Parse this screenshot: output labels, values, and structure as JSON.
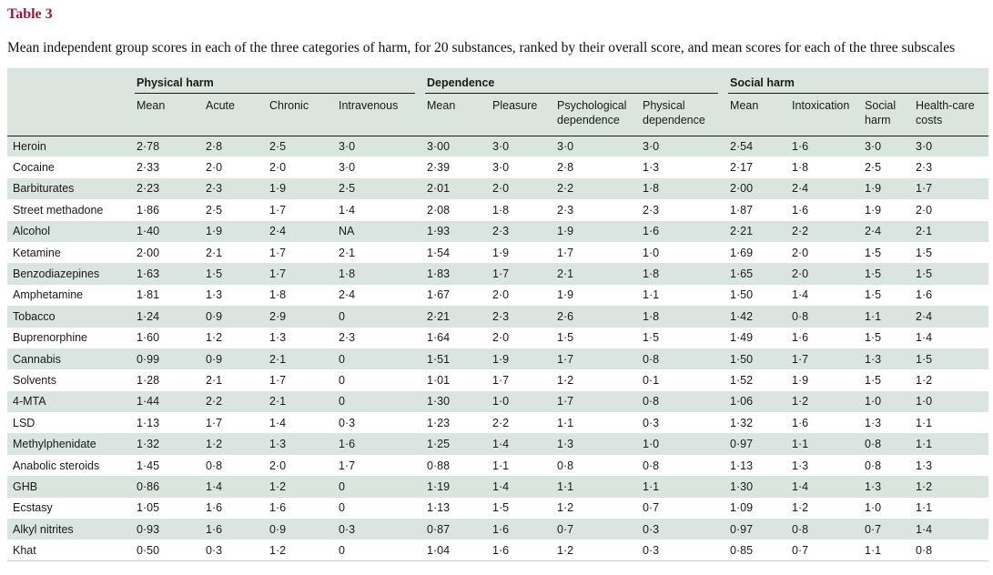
{
  "title": "Table 3",
  "caption": "Mean independent group scores in each of the three categories of harm, for 20 substances, ranked by their overall score, and mean scores for each of the three subscales",
  "colors": {
    "title_accent": "#a4123f",
    "row_stripe_green": "#d9e5de",
    "header_rule_dark": "#1c1c1c",
    "table_bottom_rule": "#c9cfca",
    "text": "#1a1a1a"
  },
  "table": {
    "substance_column_header": "",
    "groups": [
      {
        "label": "Physical harm",
        "columns": [
          "Mean",
          "Acute",
          "Chronic",
          "Intravenous"
        ]
      },
      {
        "label": "Dependence",
        "columns": [
          "Mean",
          "Pleasure",
          "Psychological dependence",
          "Physical dependence"
        ]
      },
      {
        "label": "Social harm",
        "columns": [
          "Mean",
          "Intoxication",
          "Social harm",
          "Health-care costs"
        ]
      }
    ],
    "rows": [
      {
        "substance": "Heroin",
        "values": [
          "2·78",
          "2·8",
          "2·5",
          "3·0",
          "3·00",
          "3·0",
          "3·0",
          "3·0",
          "2·54",
          "1·6",
          "3·0",
          "3·0"
        ]
      },
      {
        "substance": "Cocaine",
        "values": [
          "2·33",
          "2·0",
          "2·0",
          "3·0",
          "2·39",
          "3·0",
          "2·8",
          "1·3",
          "2·17",
          "1·8",
          "2·5",
          "2·3"
        ]
      },
      {
        "substance": "Barbiturates",
        "values": [
          "2·23",
          "2·3",
          "1·9",
          "2·5",
          "2·01",
          "2·0",
          "2·2",
          "1·8",
          "2·00",
          "2·4",
          "1·9",
          "1·7"
        ]
      },
      {
        "substance": "Street methadone",
        "values": [
          "1·86",
          "2·5",
          "1·7",
          "1·4",
          "2·08",
          "1·8",
          "2·3",
          "2·3",
          "1·87",
          "1·6",
          "1·9",
          "2·0"
        ]
      },
      {
        "substance": "Alcohol",
        "values": [
          "1·40",
          "1·9",
          "2·4",
          "NA",
          "1·93",
          "2·3",
          "1·9",
          "1·6",
          "2·21",
          "2·2",
          "2·4",
          "2·1"
        ]
      },
      {
        "substance": "Ketamine",
        "values": [
          "2·00",
          "2·1",
          "1·7",
          "2·1",
          "1·54",
          "1·9",
          "1·7",
          "1·0",
          "1·69",
          "2·0",
          "1·5",
          "1·5"
        ]
      },
      {
        "substance": "Benzodiazepines",
        "values": [
          "1·63",
          "1·5",
          "1·7",
          "1·8",
          "1·83",
          "1·7",
          "2·1",
          "1·8",
          "1·65",
          "2·0",
          "1·5",
          "1·5"
        ]
      },
      {
        "substance": "Amphetamine",
        "values": [
          "1·81",
          "1·3",
          "1·8",
          "2·4",
          "1·67",
          "2·0",
          "1·9",
          "1·1",
          "1·50",
          "1·4",
          "1·5",
          "1·6"
        ]
      },
      {
        "substance": "Tobacco",
        "values": [
          "1·24",
          "0·9",
          "2·9",
          "0",
          "2·21",
          "2·3",
          "2·6",
          "1·8",
          "1·42",
          "0·8",
          "1·1",
          "2·4"
        ]
      },
      {
        "substance": "Buprenorphine",
        "values": [
          "1·60",
          "1·2",
          "1·3",
          "2·3",
          "1·64",
          "2·0",
          "1·5",
          "1·5",
          "1·49",
          "1·6",
          "1·5",
          "1·4"
        ]
      },
      {
        "substance": "Cannabis",
        "values": [
          "0·99",
          "0·9",
          "2·1",
          "0",
          "1·51",
          "1·9",
          "1·7",
          "0·8",
          "1·50",
          "1·7",
          "1·3",
          "1·5"
        ]
      },
      {
        "substance": "Solvents",
        "values": [
          "1·28",
          "2·1",
          "1·7",
          "0",
          "1·01",
          "1·7",
          "1·2",
          "0·1",
          "1·52",
          "1·9",
          "1·5",
          "1·2"
        ]
      },
      {
        "substance": "4-MTA",
        "values": [
          "1·44",
          "2·2",
          "2·1",
          "0",
          "1·30",
          "1·0",
          "1·7",
          "0·8",
          "1·06",
          "1·2",
          "1·0",
          "1·0"
        ]
      },
      {
        "substance": "LSD",
        "values": [
          "1·13",
          "1·7",
          "1·4",
          "0·3",
          "1·23",
          "2·2",
          "1·1",
          "0·3",
          "1·32",
          "1·6",
          "1·3",
          "1·1"
        ]
      },
      {
        "substance": "Methylphenidate",
        "values": [
          "1·32",
          "1·2",
          "1·3",
          "1·6",
          "1·25",
          "1·4",
          "1·3",
          "1·0",
          "0·97",
          "1·1",
          "0·8",
          "1·1"
        ]
      },
      {
        "substance": "Anabolic steroids",
        "values": [
          "1·45",
          "0·8",
          "2·0",
          "1·7",
          "0·88",
          "1·1",
          "0·8",
          "0·8",
          "1·13",
          "1·3",
          "0·8",
          "1·3"
        ]
      },
      {
        "substance": "GHB",
        "values": [
          "0·86",
          "1·4",
          "1·2",
          "0",
          "1·19",
          "1·4",
          "1·1",
          "1·1",
          "1·30",
          "1·4",
          "1·3",
          "1·2"
        ]
      },
      {
        "substance": "Ecstasy",
        "values": [
          "1·05",
          "1·6",
          "1·6",
          "0",
          "1·13",
          "1·5",
          "1·2",
          "0·7",
          "1·09",
          "1·2",
          "1·0",
          "1·1"
        ]
      },
      {
        "substance": "Alkyl nitrites",
        "values": [
          "0·93",
          "1·6",
          "0·9",
          "0·3",
          "0·87",
          "1·6",
          "0·7",
          "0·3",
          "0·97",
          "0·8",
          "0·7",
          "1·4"
        ]
      },
      {
        "substance": "Khat",
        "values": [
          "0·50",
          "0·3",
          "1·2",
          "0",
          "1·04",
          "1·6",
          "1·2",
          "0·3",
          "0·85",
          "0·7",
          "1·1",
          "0·8"
        ]
      }
    ]
  }
}
